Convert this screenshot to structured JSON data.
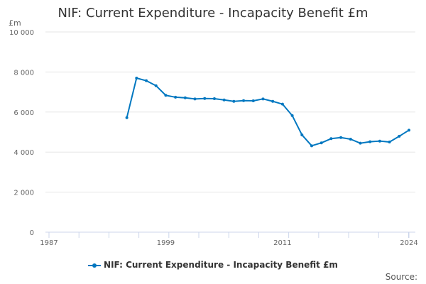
{
  "chart_data": {
    "type": "line",
    "title": "NIF: Current Expenditure - Incapacity Benefit £m",
    "ylabel": "£m",
    "xlim": [
      1987,
      2024
    ],
    "ylim": [
      0,
      10000
    ],
    "x_ticks": [
      1987,
      1999,
      2011,
      2024
    ],
    "y_ticks": [
      0,
      2000,
      4000,
      6000,
      8000,
      10000
    ],
    "y_tick_labels": [
      "0",
      "2 000",
      "4 000",
      "6 000",
      "8 000",
      "10 000"
    ],
    "grid": "horizontal",
    "legend_position": "bottom",
    "color": "#0077c0",
    "series": [
      {
        "name": "NIF: Current Expenditure - Incapacity Benefit £m",
        "x": [
          1995,
          1996,
          1997,
          1998,
          1999,
          2000,
          2001,
          2002,
          2003,
          2004,
          2005,
          2006,
          2007,
          2008,
          2009,
          2010,
          2011,
          2012,
          2013,
          2014,
          2015,
          2016,
          2017,
          2018,
          2019,
          2020,
          2021,
          2022,
          2023,
          2024
        ],
        "values": [
          5720,
          7695,
          7565,
          7315,
          6835,
          6740,
          6710,
          6655,
          6675,
          6665,
          6605,
          6535,
          6570,
          6560,
          6655,
          6535,
          6395,
          5825,
          4860,
          4315,
          4460,
          4670,
          4725,
          4645,
          4445,
          4515,
          4550,
          4505,
          4790,
          5095
        ]
      }
    ],
    "source_label": "Source:"
  }
}
